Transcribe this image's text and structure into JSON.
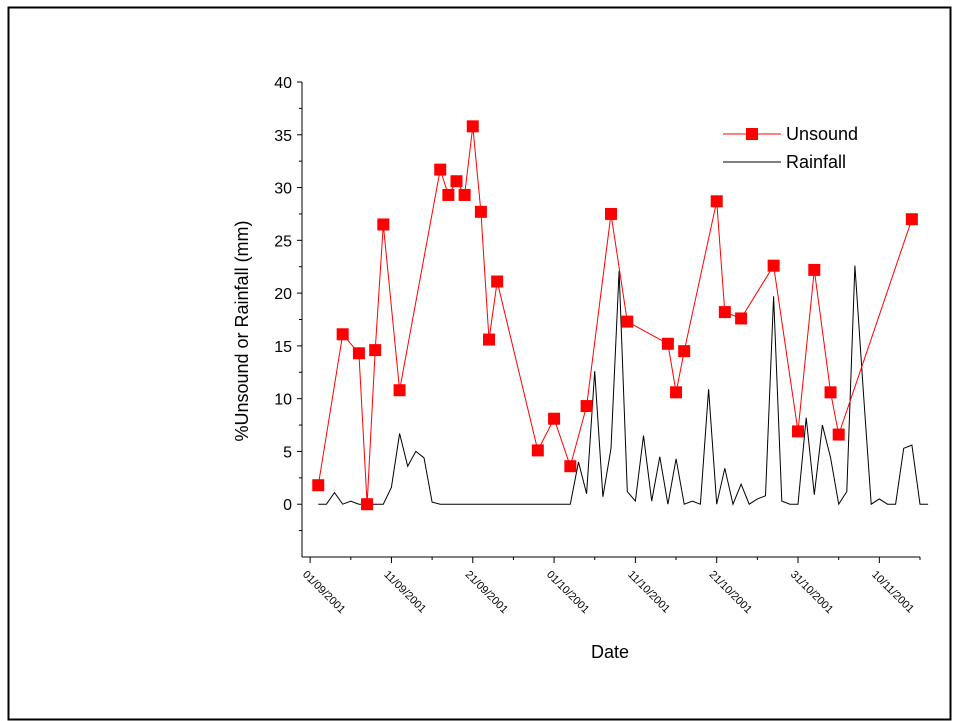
{
  "chart_data": {
    "type": "line",
    "xlabel": "Date",
    "ylabel": "%Unsound or Rainfall (mm)",
    "x_type": "date",
    "xlim": [
      "2001-08-31",
      "2001-11-15"
    ],
    "ylim": [
      -5,
      40
    ],
    "x_ticks": [
      "2001-09-01",
      "2001-09-11",
      "2001-09-21",
      "2001-10-01",
      "2001-10-11",
      "2001-10-21",
      "2001-10-31",
      "2001-11-10"
    ],
    "x_tick_labels": [
      "01/09/2001",
      "11/09/2001",
      "21/09/2001",
      "01/10/2001",
      "11/10/2001",
      "21/10/2001",
      "31/10/2001",
      "10/11/2001"
    ],
    "y_ticks": [
      0,
      5,
      10,
      15,
      20,
      25,
      30,
      35,
      40
    ],
    "y_tick_labels": [
      "0",
      "5",
      "10",
      "15",
      "20",
      "25",
      "30",
      "35",
      "40"
    ],
    "legend_position": "top-right",
    "grid": false,
    "series": [
      {
        "name": "Unsound",
        "color": "#ff0000",
        "marker": "square",
        "points": [
          [
            "2001-09-02",
            1.8
          ],
          [
            "2001-09-05",
            16.1
          ],
          [
            "2001-09-07",
            14.3
          ],
          [
            "2001-09-08",
            0.0
          ],
          [
            "2001-09-09",
            14.6
          ],
          [
            "2001-09-10",
            26.5
          ],
          [
            "2001-09-12",
            10.8
          ],
          [
            "2001-09-17",
            31.7
          ],
          [
            "2001-09-18",
            29.3
          ],
          [
            "2001-09-19",
            30.6
          ],
          [
            "2001-09-20",
            29.3
          ],
          [
            "2001-09-21",
            35.8
          ],
          [
            "2001-09-22",
            27.7
          ],
          [
            "2001-09-23",
            15.6
          ],
          [
            "2001-09-24",
            21.1
          ],
          [
            "2001-09-29",
            5.1
          ],
          [
            "2001-10-01",
            8.1
          ],
          [
            "2001-10-03",
            3.6
          ],
          [
            "2001-10-05",
            9.3
          ],
          [
            "2001-10-08",
            27.5
          ],
          [
            "2001-10-10",
            17.3
          ],
          [
            "2001-10-15",
            15.2
          ],
          [
            "2001-10-16",
            10.6
          ],
          [
            "2001-10-17",
            14.5
          ],
          [
            "2001-10-21",
            28.7
          ],
          [
            "2001-10-22",
            18.2
          ],
          [
            "2001-10-24",
            17.6
          ],
          [
            "2001-10-28",
            22.6
          ],
          [
            "2001-10-31",
            6.9
          ],
          [
            "2001-11-02",
            22.2
          ],
          [
            "2001-11-04",
            10.6
          ],
          [
            "2001-11-05",
            6.6
          ],
          [
            "2001-11-14",
            27.0
          ]
        ]
      },
      {
        "name": "Rainfall",
        "color": "#000000",
        "marker": "none",
        "points": [
          [
            "2001-09-02",
            0.0
          ],
          [
            "2001-09-03",
            0.0
          ],
          [
            "2001-09-04",
            1.1
          ],
          [
            "2001-09-05",
            0.0
          ],
          [
            "2001-09-06",
            0.3
          ],
          [
            "2001-09-07",
            0.0
          ],
          [
            "2001-09-08",
            0.0
          ],
          [
            "2001-09-09",
            0.0
          ],
          [
            "2001-09-10",
            0.0
          ],
          [
            "2001-09-11",
            1.6
          ],
          [
            "2001-09-12",
            6.7
          ],
          [
            "2001-09-13",
            3.6
          ],
          [
            "2001-09-14",
            5.0
          ],
          [
            "2001-09-15",
            4.4
          ],
          [
            "2001-09-16",
            0.2
          ],
          [
            "2001-09-17",
            0.0
          ],
          [
            "2001-09-18",
            0.0
          ],
          [
            "2001-09-19",
            0.0
          ],
          [
            "2001-09-20",
            0.0
          ],
          [
            "2001-09-21",
            0.0
          ],
          [
            "2001-09-22",
            0.0
          ],
          [
            "2001-09-23",
            0.0
          ],
          [
            "2001-09-24",
            0.0
          ],
          [
            "2001-09-25",
            0.0
          ],
          [
            "2001-09-26",
            0.0
          ],
          [
            "2001-09-27",
            0.0
          ],
          [
            "2001-09-28",
            0.0
          ],
          [
            "2001-09-29",
            0.0
          ],
          [
            "2001-09-30",
            0.0
          ],
          [
            "2001-10-01",
            0.0
          ],
          [
            "2001-10-02",
            0.0
          ],
          [
            "2001-10-03",
            0.0
          ],
          [
            "2001-10-04",
            4.0
          ],
          [
            "2001-10-05",
            1.0
          ],
          [
            "2001-10-06",
            12.6
          ],
          [
            "2001-10-07",
            0.7
          ],
          [
            "2001-10-08",
            5.3
          ],
          [
            "2001-10-09",
            22.1
          ],
          [
            "2001-10-10",
            1.2
          ],
          [
            "2001-10-11",
            0.3
          ],
          [
            "2001-10-12",
            6.5
          ],
          [
            "2001-10-13",
            0.3
          ],
          [
            "2001-10-14",
            4.5
          ],
          [
            "2001-10-15",
            0.0
          ],
          [
            "2001-10-16",
            4.3
          ],
          [
            "2001-10-17",
            0.0
          ],
          [
            "2001-10-18",
            0.3
          ],
          [
            "2001-10-19",
            0.0
          ],
          [
            "2001-10-20",
            10.9
          ],
          [
            "2001-10-21",
            0.0
          ],
          [
            "2001-10-22",
            3.4
          ],
          [
            "2001-10-23",
            0.0
          ],
          [
            "2001-10-24",
            1.9
          ],
          [
            "2001-10-25",
            0.0
          ],
          [
            "2001-10-26",
            0.5
          ],
          [
            "2001-10-27",
            0.8
          ],
          [
            "2001-10-28",
            19.7
          ],
          [
            "2001-10-29",
            0.3
          ],
          [
            "2001-10-30",
            0.0
          ],
          [
            "2001-10-31",
            0.0
          ],
          [
            "2001-11-01",
            8.2
          ],
          [
            "2001-11-02",
            0.9
          ],
          [
            "2001-11-03",
            7.5
          ],
          [
            "2001-11-04",
            4.4
          ],
          [
            "2001-11-05",
            0.0
          ],
          [
            "2001-11-06",
            1.2
          ],
          [
            "2001-11-07",
            22.6
          ],
          [
            "2001-11-08",
            11.0
          ],
          [
            "2001-11-09",
            0.0
          ],
          [
            "2001-11-10",
            0.5
          ],
          [
            "2001-11-11",
            0.0
          ],
          [
            "2001-11-12",
            0.0
          ],
          [
            "2001-11-13",
            5.3
          ],
          [
            "2001-11-14",
            5.6
          ],
          [
            "2001-11-15",
            0.0
          ],
          [
            "2001-11-16",
            0.0
          ]
        ]
      }
    ]
  }
}
